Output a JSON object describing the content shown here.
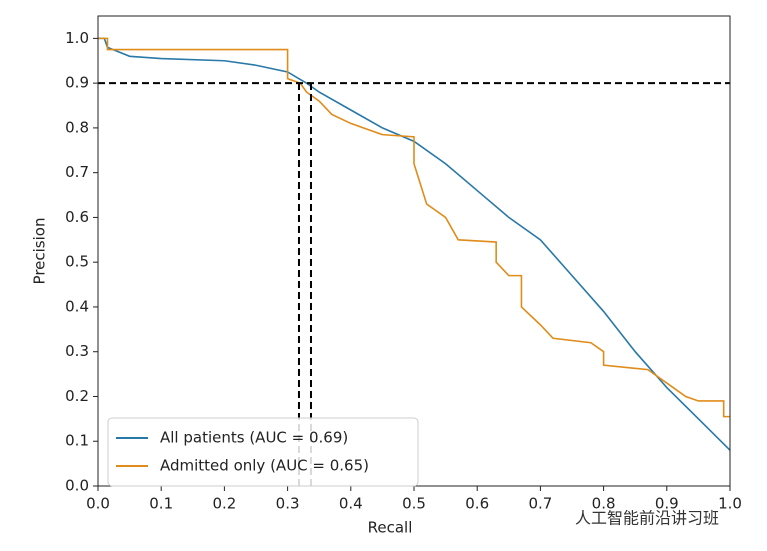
{
  "chart_data": {
    "type": "line",
    "xlabel": "Recall",
    "ylabel": "Precision",
    "xlim": [
      0,
      1
    ],
    "ylim": [
      0,
      1.05
    ],
    "xticks": [
      {
        "value": 0,
        "label": "0.0"
      },
      0.1,
      0.2,
      0.3,
      0.4,
      0.5,
      0.6,
      0.7,
      0.8,
      0.9,
      {
        "value": 1,
        "label": "1.0"
      }
    ],
    "yticks": [
      {
        "value": 0,
        "label": "0.0"
      },
      0.1,
      0.2,
      0.3,
      0.4,
      0.5,
      0.6,
      0.7,
      0.8,
      0.9,
      {
        "value": 1,
        "label": "1.0"
      }
    ],
    "legend": "lower left",
    "reference_lines": {
      "y": [
        0.9
      ],
      "x": [
        0.318,
        0.337
      ]
    },
    "series": [
      {
        "name": "All patients (AUC = 0.69)",
        "color": "#2878a8",
        "x": [
          0,
          0.01,
          0.015,
          0.05,
          0.1,
          0.2,
          0.25,
          0.3,
          0.33,
          0.35,
          0.4,
          0.45,
          0.5,
          0.55,
          0.6,
          0.65,
          0.7,
          0.75,
          0.8,
          0.85,
          0.9,
          0.95,
          1.0
        ],
        "values": [
          1.0,
          1.0,
          0.98,
          0.96,
          0.955,
          0.95,
          0.94,
          0.925,
          0.9,
          0.88,
          0.84,
          0.8,
          0.77,
          0.72,
          0.66,
          0.6,
          0.55,
          0.47,
          0.39,
          0.3,
          0.22,
          0.15,
          0.08
        ]
      },
      {
        "name": "Admitted only (AUC = 0.65)",
        "color": "#e08c1a",
        "x": [
          0,
          0.015,
          0.015,
          0.3,
          0.3,
          0.32,
          0.33,
          0.35,
          0.37,
          0.4,
          0.45,
          0.5,
          0.5,
          0.52,
          0.55,
          0.57,
          0.63,
          0.63,
          0.65,
          0.67,
          0.67,
          0.7,
          0.72,
          0.78,
          0.8,
          0.8,
          0.87,
          0.9,
          0.93,
          0.95,
          0.99,
          0.99,
          1.0
        ],
        "values": [
          1.0,
          1.0,
          0.975,
          0.975,
          0.91,
          0.9,
          0.88,
          0.86,
          0.83,
          0.81,
          0.785,
          0.78,
          0.72,
          0.63,
          0.6,
          0.55,
          0.545,
          0.5,
          0.47,
          0.47,
          0.4,
          0.36,
          0.33,
          0.32,
          0.3,
          0.27,
          0.26,
          0.23,
          0.2,
          0.19,
          0.19,
          0.155,
          0.155
        ]
      }
    ]
  },
  "watermark": "人工智能前沿讲习班"
}
